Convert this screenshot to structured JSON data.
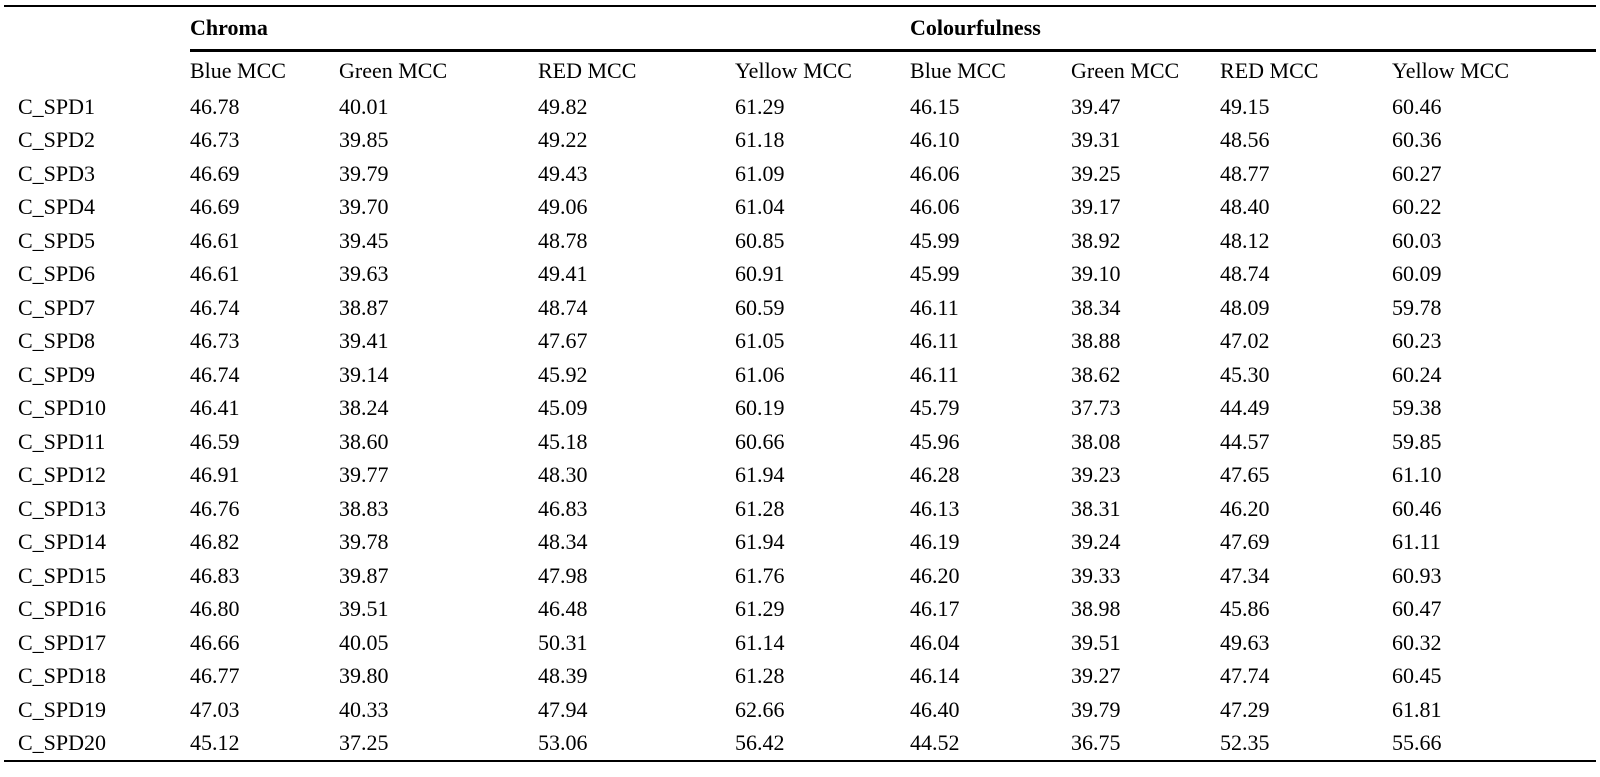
{
  "table": {
    "groups": {
      "chroma": "Chroma",
      "colourfulness": "Colourfulness"
    },
    "subheaders": [
      "Blue MCC",
      "Green MCC",
      "RED MCC",
      "Yellow MCC",
      "Blue MCC",
      "Green MCC",
      "RED MCC",
      "Yellow MCC"
    ],
    "rows": [
      {
        "label": "C_SPD1",
        "values": [
          "46.78",
          "40.01",
          "49.82",
          "61.29",
          "46.15",
          "39.47",
          "49.15",
          "60.46"
        ]
      },
      {
        "label": "C_SPD2",
        "values": [
          "46.73",
          "39.85",
          "49.22",
          "61.18",
          "46.10",
          "39.31",
          "48.56",
          "60.36"
        ]
      },
      {
        "label": "C_SPD3",
        "values": [
          "46.69",
          "39.79",
          "49.43",
          "61.09",
          "46.06",
          "39.25",
          "48.77",
          "60.27"
        ]
      },
      {
        "label": "C_SPD4",
        "values": [
          "46.69",
          "39.70",
          "49.06",
          "61.04",
          "46.06",
          "39.17",
          "48.40",
          "60.22"
        ]
      },
      {
        "label": "C_SPD5",
        "values": [
          "46.61",
          "39.45",
          "48.78",
          "60.85",
          "45.99",
          "38.92",
          "48.12",
          "60.03"
        ]
      },
      {
        "label": "C_SPD6",
        "values": [
          "46.61",
          "39.63",
          "49.41",
          "60.91",
          "45.99",
          "39.10",
          "48.74",
          "60.09"
        ]
      },
      {
        "label": "C_SPD7",
        "values": [
          "46.74",
          "38.87",
          "48.74",
          "60.59",
          "46.11",
          "38.34",
          "48.09",
          "59.78"
        ]
      },
      {
        "label": "C_SPD8",
        "values": [
          "46.73",
          "39.41",
          "47.67",
          "61.05",
          "46.11",
          "38.88",
          "47.02",
          "60.23"
        ]
      },
      {
        "label": "C_SPD9",
        "values": [
          "46.74",
          "39.14",
          "45.92",
          "61.06",
          "46.11",
          "38.62",
          "45.30",
          "60.24"
        ]
      },
      {
        "label": "C_SPD10",
        "values": [
          "46.41",
          "38.24",
          "45.09",
          "60.19",
          "45.79",
          "37.73",
          "44.49",
          "59.38"
        ]
      },
      {
        "label": "C_SPD11",
        "values": [
          "46.59",
          "38.60",
          "45.18",
          "60.66",
          "45.96",
          "38.08",
          "44.57",
          "59.85"
        ]
      },
      {
        "label": "C_SPD12",
        "values": [
          "46.91",
          "39.77",
          "48.30",
          "61.94",
          "46.28",
          "39.23",
          "47.65",
          "61.10"
        ]
      },
      {
        "label": "C_SPD13",
        "values": [
          "46.76",
          "38.83",
          "46.83",
          "61.28",
          "46.13",
          "38.31",
          "46.20",
          "60.46"
        ]
      },
      {
        "label": "C_SPD14",
        "values": [
          "46.82",
          "39.78",
          "48.34",
          "61.94",
          "46.19",
          "39.24",
          "47.69",
          "61.11"
        ]
      },
      {
        "label": "C_SPD15",
        "values": [
          "46.83",
          "39.87",
          "47.98",
          "61.76",
          "46.20",
          "39.33",
          "47.34",
          "60.93"
        ]
      },
      {
        "label": "C_SPD16",
        "values": [
          "46.80",
          "39.51",
          "46.48",
          "61.29",
          "46.17",
          "38.98",
          "45.86",
          "60.47"
        ]
      },
      {
        "label": "C_SPD17",
        "values": [
          "46.66",
          "40.05",
          "50.31",
          "61.14",
          "46.04",
          "39.51",
          "49.63",
          "60.32"
        ]
      },
      {
        "label": "C_SPD18",
        "values": [
          "46.77",
          "39.80",
          "48.39",
          "61.28",
          "46.14",
          "39.27",
          "47.74",
          "60.45"
        ]
      },
      {
        "label": "C_SPD19",
        "values": [
          "47.03",
          "40.33",
          "47.94",
          "62.66",
          "46.40",
          "39.79",
          "47.29",
          "61.81"
        ]
      },
      {
        "label": "C_SPD20",
        "values": [
          "45.12",
          "37.25",
          "53.06",
          "56.42",
          "44.52",
          "36.75",
          "52.35",
          "55.66"
        ]
      }
    ]
  }
}
